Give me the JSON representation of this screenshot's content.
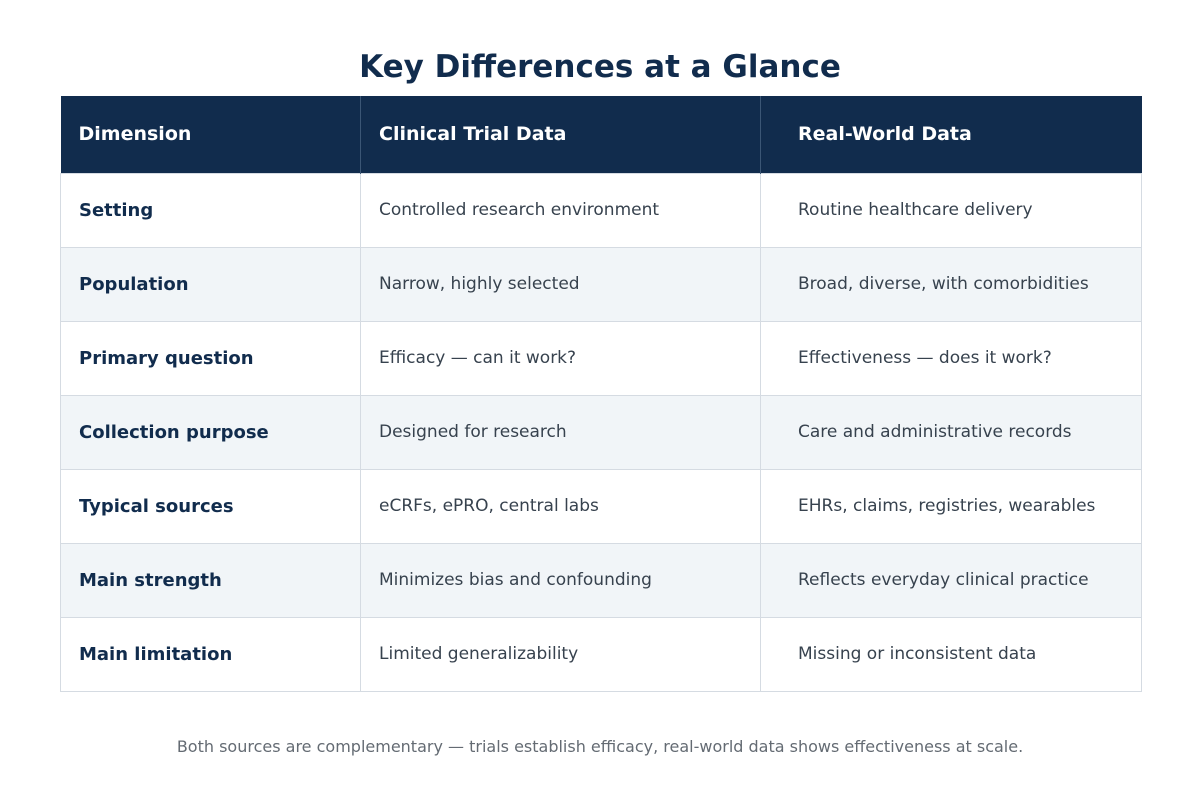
{
  "title": "Key Differences at a Glance",
  "table": {
    "headers": [
      "Dimension",
      "Clinical Trial Data",
      "Real-World Data"
    ],
    "rows": [
      {
        "dimension": "Setting",
        "clinical": "Controlled research environment",
        "real_world": "Routine healthcare delivery"
      },
      {
        "dimension": "Population",
        "clinical": "Narrow, highly selected",
        "real_world": "Broad, diverse, with comorbidities"
      },
      {
        "dimension": "Primary question",
        "clinical": "Efficacy — can it work?",
        "real_world": "Effectiveness — does it work?"
      },
      {
        "dimension": "Collection purpose",
        "clinical": "Designed for research",
        "real_world": "Care and administrative records"
      },
      {
        "dimension": "Typical sources",
        "clinical": "eCRFs, ePRO, central labs",
        "real_world": "EHRs, claims, registries, wearables"
      },
      {
        "dimension": "Main strength",
        "clinical": "Minimizes bias and confounding",
        "real_world": "Reflects everyday clinical practice"
      },
      {
        "dimension": "Main limitation",
        "clinical": "Limited generalizability",
        "real_world": "Missing or inconsistent data"
      }
    ]
  },
  "footnote": "Both sources are complementary — trials establish efficacy, real-world data shows effectiveness at scale.",
  "colors": {
    "header_bg": "#112c4d",
    "title_text": "#112c4d",
    "alt_row_bg": "#f1f5f8",
    "border": "#d5dbe2"
  }
}
